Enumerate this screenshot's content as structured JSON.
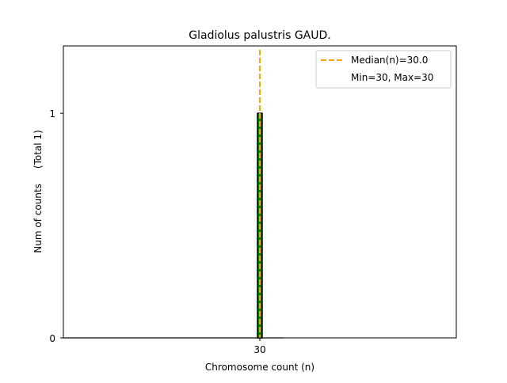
{
  "chart_data": {
    "type": "bar",
    "title": "Gladiolus palustris GAUD.",
    "xlabel": "Chromosome count (n)",
    "ylabel": "Num of counts     (Total 1)",
    "categories": [
      30
    ],
    "values": [
      1
    ],
    "xlim": [
      0,
      60
    ],
    "ylim": [
      0,
      1.3
    ],
    "xticks": [
      30
    ],
    "yticks": [
      0,
      1
    ],
    "bar_color": "#008000",
    "bar_edge_color": "#000000",
    "median": 30.0,
    "median_color": "#FFA500",
    "legend": {
      "position": "top-right",
      "entries": [
        "Median(n)=30.0",
        "Min=30, Max=30"
      ]
    },
    "grid": false
  }
}
